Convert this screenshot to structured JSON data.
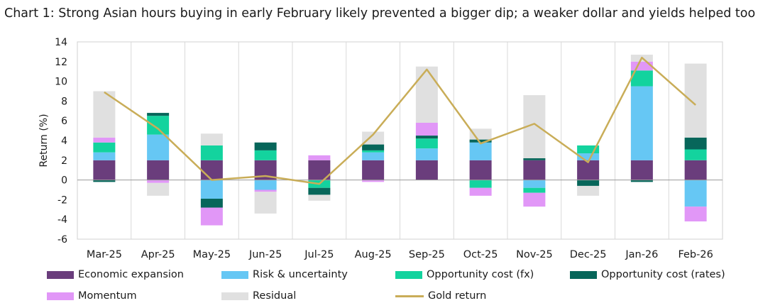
{
  "title": "Chart 1: Strong Asian hours buying in early February likely prevented a bigger dip; a weaker dollar and yields helped too",
  "chart_data": {
    "type": "bar",
    "stacked": true,
    "ylabel": "Return (%)",
    "xlabel": "",
    "ylim": [
      -6,
      14
    ],
    "yticks": [
      -6,
      -4,
      -2,
      0,
      2,
      4,
      6,
      8,
      10,
      12,
      14
    ],
    "grid": "vertical separators between categories",
    "legend_position": "bottom",
    "categories": [
      "Mar-25",
      "Apr-25",
      "May-25",
      "Jun-25",
      "Jul-25",
      "Aug-25",
      "Sep-25",
      "Oct-25",
      "Nov-25",
      "Dec-25",
      "Jan-26",
      "Feb-26"
    ],
    "series": [
      {
        "name": "Economic expansion",
        "color": "#6a3d7c",
        "values": [
          2.0,
          2.0,
          2.0,
          2.0,
          2.0,
          2.0,
          2.0,
          2.0,
          2.0,
          2.0,
          2.0,
          2.0
        ]
      },
      {
        "name": "Risk & uncertainty",
        "color": "#66c7f4",
        "values": [
          0.8,
          2.6,
          -1.9,
          -1.0,
          0.0,
          0.8,
          1.2,
          1.8,
          -0.8,
          0.7,
          7.5,
          -2.7
        ]
      },
      {
        "name": "Opportunity cost (fx)",
        "color": "#13d39e",
        "values": [
          1.0,
          1.9,
          1.5,
          1.0,
          -0.8,
          0.2,
          1.0,
          -0.8,
          -0.5,
          0.8,
          1.6,
          1.1
        ]
      },
      {
        "name": "Opportunity cost (rates)",
        "color": "#07665a",
        "values": [
          -0.2,
          0.3,
          -0.9,
          0.8,
          -0.7,
          0.6,
          0.3,
          0.3,
          0.2,
          -0.6,
          -0.2,
          1.2
        ]
      },
      {
        "name": "Momentum",
        "color": "#e197f7",
        "values": [
          0.5,
          -0.3,
          -1.8,
          -0.2,
          0.5,
          -0.2,
          1.3,
          -0.8,
          -1.4,
          0.0,
          0.9,
          -1.5
        ]
      },
      {
        "name": "Residual",
        "color": "#e0e0e0",
        "values": [
          4.7,
          -1.3,
          1.2,
          -2.2,
          -0.6,
          1.3,
          5.7,
          1.1,
          6.4,
          -1.0,
          0.7,
          7.5
        ]
      }
    ],
    "line": {
      "name": "Gold return",
      "color": "#c9ad58",
      "values": [
        8.9,
        5.2,
        0.0,
        0.4,
        -0.4,
        4.6,
        11.2,
        3.7,
        5.7,
        1.8,
        12.4,
        7.6
      ]
    }
  }
}
